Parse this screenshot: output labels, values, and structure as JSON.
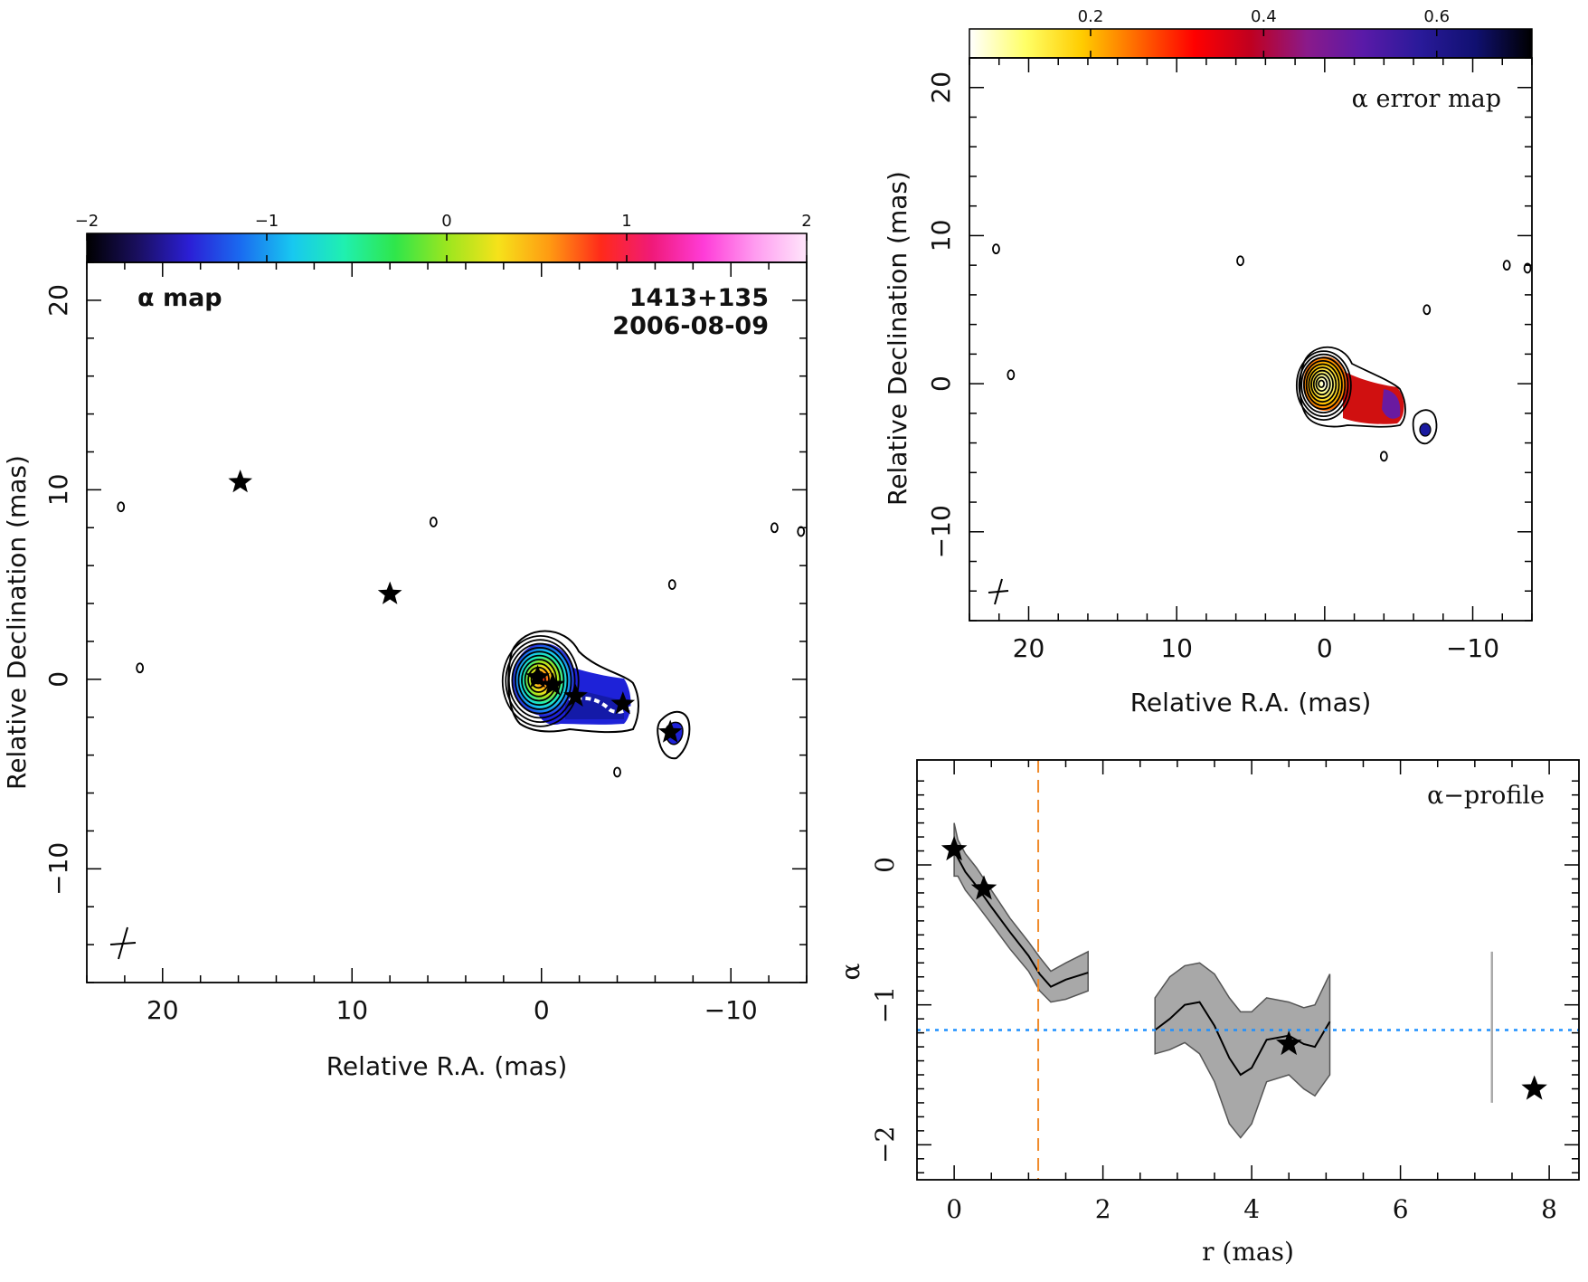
{
  "chart_data": [
    {
      "type": "heatmap",
      "panel": "alpha-map",
      "label": "α map",
      "source": "1413+135",
      "date": "2006-08-09",
      "colorbar": {
        "ticks": [
          -2,
          -1,
          0,
          1,
          2
        ],
        "tick_labels": [
          "−2",
          "−1",
          "0",
          "1",
          "2"
        ],
        "range": [
          -2,
          2
        ],
        "colormap": [
          "#000000",
          "#1a0f60",
          "#2b1fd6",
          "#1a6cf0",
          "#18c8f0",
          "#1ff0b0",
          "#2fe64a",
          "#9be61f",
          "#f6e21a",
          "#ff9a12",
          "#ff2a1a",
          "#f01a7a",
          "#ff3cd8",
          "#ff9cf0",
          "#ffe6fb"
        ]
      },
      "xlabel": "Relative R.A. (mas)",
      "ylabel": "Relative Declination (mas)",
      "xlim": [
        24,
        -14
      ],
      "ylim": [
        -16,
        22
      ],
      "xticks": [
        20,
        10,
        0,
        -10
      ],
      "xtick_labels": [
        "20",
        "10",
        "0",
        "−10"
      ],
      "yticks": [
        20,
        10,
        0,
        -10
      ],
      "ytick_labels": [
        "20",
        "10",
        "0",
        "−10"
      ],
      "stars": [
        {
          "x": 15.9,
          "y": 10.4
        },
        {
          "x": 8.0,
          "y": 4.5
        },
        {
          "x": 0.2,
          "y": 0.1
        },
        {
          "x": -0.6,
          "y": -0.3
        },
        {
          "x": -1.8,
          "y": -0.9
        },
        {
          "x": -4.3,
          "y": -1.3
        },
        {
          "x": -6.8,
          "y": -2.8
        }
      ],
      "stray_contours": [
        {
          "x": 22.2,
          "y": 9.1
        },
        {
          "x": 21.2,
          "y": 0.6
        },
        {
          "x": 5.7,
          "y": 8.3
        },
        {
          "x": -6.9,
          "y": 5.0
        },
        {
          "x": -12.3,
          "y": 8.0
        },
        {
          "x": -13.7,
          "y": 7.8
        },
        {
          "x": -4.0,
          "y": -4.9
        }
      ]
    },
    {
      "type": "heatmap",
      "panel": "alpha-error-map",
      "label": "α error map",
      "colorbar": {
        "ticks": [
          0.2,
          0.4,
          0.6
        ],
        "tick_labels": [
          "0.2",
          "0.4",
          "0.6"
        ],
        "range": [
          0.06,
          0.71
        ],
        "colormap": [
          "#ffffff",
          "#ffff66",
          "#ffcc00",
          "#ff6600",
          "#ff0000",
          "#c00020",
          "#8a1a8a",
          "#5a1aa8",
          "#2a1a9a",
          "#101070",
          "#000000"
        ]
      },
      "xlabel": "Relative R.A. (mas)",
      "ylabel": "Relative Declination (mas)",
      "xlim": [
        24,
        -14
      ],
      "ylim": [
        -16,
        22
      ],
      "xticks": [
        20,
        10,
        0,
        -10
      ],
      "xtick_labels": [
        "20",
        "10",
        "0",
        "−10"
      ],
      "yticks": [
        20,
        10,
        0,
        -10
      ],
      "ytick_labels": [
        "20",
        "10",
        "0",
        "−10"
      ]
    },
    {
      "type": "line",
      "panel": "alpha-profile",
      "label": "α−profile",
      "xlabel": "r (mas)",
      "ylabel": "α",
      "xlim": [
        -0.5,
        8.4
      ],
      "ylim": [
        -2.25,
        0.75
      ],
      "xticks": [
        0,
        2,
        4,
        6,
        8
      ],
      "xtick_labels": [
        "0",
        "2",
        "4",
        "6",
        "8"
      ],
      "yticks": [
        0,
        -1,
        -2
      ],
      "ytick_labels": [
        "0",
        "−1",
        "−2"
      ],
      "series": [
        {
          "x": [
            0.0,
            0.05,
            0.15,
            0.3,
            0.5,
            0.75,
            1.0,
            1.15,
            1.3,
            1.5,
            1.8
          ],
          "y": [
            0.1,
            0.05,
            -0.05,
            -0.15,
            -0.3,
            -0.48,
            -0.65,
            -0.78,
            -0.87,
            -0.82,
            -0.77
          ],
          "upper": [
            0.3,
            0.18,
            0.08,
            -0.02,
            -0.18,
            -0.38,
            -0.55,
            -0.66,
            -0.76,
            -0.7,
            -0.62
          ],
          "lower": [
            -0.08,
            -0.08,
            -0.18,
            -0.28,
            -0.42,
            -0.6,
            -0.76,
            -0.9,
            -0.98,
            -0.96,
            -0.9
          ]
        },
        {
          "x": [
            2.7,
            2.9,
            3.1,
            3.3,
            3.5,
            3.7,
            3.85,
            4.0,
            4.2,
            4.5,
            4.7,
            4.85,
            5.05
          ],
          "y": [
            -1.18,
            -1.1,
            -1.0,
            -0.98,
            -1.15,
            -1.38,
            -1.5,
            -1.45,
            -1.25,
            -1.22,
            -1.28,
            -1.3,
            -1.12
          ],
          "upper": [
            -0.95,
            -0.8,
            -0.72,
            -0.7,
            -0.78,
            -0.95,
            -1.05,
            -1.05,
            -0.95,
            -0.98,
            -1.02,
            -1.0,
            -0.78
          ],
          "lower": [
            -1.35,
            -1.32,
            -1.27,
            -1.35,
            -1.55,
            -1.85,
            -1.95,
            -1.85,
            -1.55,
            -1.5,
            -1.6,
            -1.65,
            -1.5
          ]
        }
      ],
      "stars": [
        {
          "x": 0.0,
          "y": 0.11
        },
        {
          "x": 0.4,
          "y": -0.17
        },
        {
          "x": 4.5,
          "y": -1.28
        },
        {
          "x": 7.8,
          "y": -1.6
        }
      ],
      "hline": -1.18,
      "vline": 1.13,
      "vertical_bar": {
        "x": 7.23,
        "y": [
          -1.7,
          -0.62
        ]
      },
      "colors": {
        "hline": "#1e90ff",
        "vline": "#f08a2a",
        "band": "#a8a8a8",
        "vertical_bar": "#aaaaaa"
      }
    }
  ]
}
